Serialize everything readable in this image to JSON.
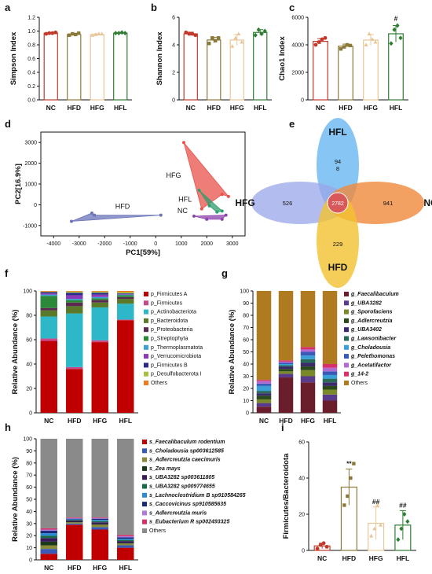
{
  "panel_labels": [
    "a",
    "b",
    "c",
    "d",
    "e",
    "f",
    "g",
    "h",
    "i"
  ],
  "colors": {
    "NC": "#c0392b",
    "HFD": "#8a7a3a",
    "HFG": "#e8c89a",
    "HFL": "#2e7d32",
    "pca_HFD": "#6a74b8",
    "pca_HFG": "#e8504a",
    "pca_HFL": "#2e9e6e",
    "pca_NC": "#8e44ad",
    "venn_HFL": "#5fb3f0",
    "venn_HFG": "#9aa6e8",
    "venn_NC": "#f0883c",
    "venn_HFD": "#f2c230",
    "venn_center": "#d9585a",
    "f": [
      "#c00000",
      "#c84a8a",
      "#2db7c8",
      "#5a7a2a",
      "#5b2a50",
      "#2a8a3a",
      "#3aa0d8",
      "#8a3ab8",
      "#2a2a8a",
      "#a8c040",
      "#f07a20"
    ],
    "g": [
      "#6a1d2a",
      "#5a3a8a",
      "#7a8a2a",
      "#2a4a1a",
      "#3a2a6a",
      "#2a6a5a",
      "#3aa0d8",
      "#3a5ab8",
      "#b06ad0",
      "#d8306a",
      "#b07a20"
    ],
    "h": [
      "#c00000",
      "#3a5ab8",
      "#8a8a3a",
      "#1a3a1a",
      "#3a1a5a",
      "#1a6a4a",
      "#2a8ad8",
      "#1a2a7a",
      "#b07ad8",
      "#d8306a",
      "#8a8a8a"
    ]
  },
  "chart_data": [
    {
      "id": "a",
      "type": "bar",
      "ylabel": "Simpson Index",
      "categories": [
        "NC",
        "HFD",
        "HFG",
        "HFL"
      ],
      "ylim": [
        0,
        1.2
      ],
      "yticks": [
        "0.0",
        "0.2",
        "0.4",
        "0.6",
        "0.8",
        "1.0",
        "1.2"
      ],
      "values": [
        0.97,
        0.95,
        0.95,
        0.97
      ],
      "points": [
        [
          0.96,
          0.97,
          0.97,
          0.98
        ],
        [
          0.94,
          0.96,
          0.95,
          0.97
        ],
        [
          0.94,
          0.95,
          0.96,
          0.96
        ],
        [
          0.97,
          0.97,
          0.98,
          0.97
        ]
      ],
      "errors": [
        0.01,
        0.01,
        0.01,
        0.01
      ]
    },
    {
      "id": "b",
      "type": "bar",
      "ylabel": "Shannon Index",
      "categories": [
        "NC",
        "HFD",
        "HFG",
        "HFL"
      ],
      "ylim": [
        0,
        6
      ],
      "yticks": [
        "0",
        "2",
        "4",
        "6"
      ],
      "values": [
        4.8,
        4.35,
        4.35,
        4.9
      ],
      "points": [
        [
          4.9,
          4.8,
          4.8,
          4.7
        ],
        [
          4.1,
          4.5,
          4.3,
          4.5
        ],
        [
          3.9,
          4.5,
          4.8,
          4.2
        ],
        [
          4.7,
          5.1,
          4.8,
          5.0
        ]
      ],
      "errors": [
        0.12,
        0.2,
        0.4,
        0.2
      ]
    },
    {
      "id": "c",
      "type": "bar",
      "ylabel": "Chao1 Index",
      "categories": [
        "NC",
        "HFD",
        "HFG",
        "HFL"
      ],
      "ylim": [
        0,
        6000
      ],
      "yticks": [
        "0",
        "2000",
        "4000",
        "6000"
      ],
      "values": [
        4250,
        3900,
        4350,
        4800
      ],
      "points": [
        [
          4000,
          4200,
          4400,
          4500
        ],
        [
          3700,
          3850,
          4000,
          3950
        ],
        [
          4000,
          4800,
          4400,
          4200
        ],
        [
          4100,
          5100,
          5400,
          4500
        ]
      ],
      "errors": [
        200,
        150,
        400,
        600
      ],
      "annotation": {
        "category": "HFL",
        "text": "#"
      }
    },
    {
      "id": "d",
      "type": "scatter",
      "xlabel": "PC1[59%]",
      "ylabel": "PC2[16.9%]",
      "xlim": [
        -4500,
        3500
      ],
      "ylim": [
        -1500,
        3500
      ],
      "xticks": [
        -4000,
        -3000,
        -2000,
        -1000,
        0,
        1000,
        2000,
        3000
      ],
      "yticks": [
        -1000,
        0,
        1000,
        2000,
        3000
      ],
      "groups": [
        {
          "name": "HFD",
          "points": [
            [
              -3300,
              -800
            ],
            [
              -2500,
              -400
            ],
            [
              -2400,
              -500
            ],
            [
              200,
              -500
            ]
          ],
          "label_at": [
            -1300,
            -200
          ]
        },
        {
          "name": "HFG",
          "points": [
            [
              1100,
              3000
            ],
            [
              2850,
              400
            ],
            [
              2600,
              500
            ],
            [
              1800,
              -200
            ]
          ],
          "label_at": [
            700,
            1300
          ]
        },
        {
          "name": "HFL",
          "points": [
            [
              1700,
              700
            ],
            [
              2100,
              -50
            ],
            [
              2400,
              -350
            ],
            [
              2600,
              -300
            ]
          ],
          "label_at": [
            1150,
            150
          ]
        },
        {
          "name": "NC",
          "points": [
            [
              1500,
              -550
            ],
            [
              2000,
              -700
            ],
            [
              2600,
              -700
            ],
            [
              2750,
              -500
            ]
          ],
          "label_at": [
            1050,
            -400
          ]
        }
      ]
    },
    {
      "id": "e",
      "type": "venn",
      "sets": [
        "HFL",
        "HFG",
        "NC",
        "HFD"
      ],
      "counts": {
        "HFL": "94",
        "HFL_sub": "8",
        "HFG": "526",
        "NC": "941",
        "HFD": "229",
        "core": "2782"
      }
    },
    {
      "id": "f",
      "type": "stacked_bar",
      "ylabel": "Relative Abundance (%)",
      "categories": [
        "NC",
        "HFD",
        "HFG",
        "HFL"
      ],
      "ylim": [
        0,
        100
      ],
      "yticks": [
        "0",
        "20",
        "40",
        "60",
        "80",
        "100"
      ],
      "series": [
        {
          "name": "p_Firmicutes A",
          "values": [
            59,
            36,
            58,
            76
          ]
        },
        {
          "name": "p_Firmicutes",
          "values": [
            2,
            1.5,
            1.5,
            0.5
          ]
        },
        {
          "name": "p_Actinobacteriota",
          "values": [
            18,
            44,
            27,
            13
          ]
        },
        {
          "name": "p_Bacteroidota",
          "values": [
            5,
            6,
            4,
            4
          ]
        },
        {
          "name": "p_Proteobacteria",
          "values": [
            2,
            3,
            2,
            1.5
          ]
        },
        {
          "name": "p_Streptophyta",
          "values": [
            10,
            2,
            1.5,
            1.5
          ]
        },
        {
          "name": "p_Thermoplasmatota",
          "values": [
            1,
            1,
            1,
            0.5
          ]
        },
        {
          "name": "p_Verrucomicrobiota",
          "values": [
            1,
            3,
            2,
            0.5
          ]
        },
        {
          "name": "p_Firmicutes B",
          "values": [
            1,
            2,
            1.5,
            0.5
          ]
        },
        {
          "name": "p_Desulfobacterota I",
          "values": [
            0.5,
            1,
            1,
            1
          ]
        },
        {
          "name": "Others",
          "values": [
            0.5,
            0.5,
            0.5,
            1
          ]
        }
      ]
    },
    {
      "id": "g",
      "type": "stacked_bar",
      "ylabel": "Relative Abundance (%)",
      "categories": [
        "NC",
        "HFD",
        "HFG",
        "HFL"
      ],
      "ylim": [
        0,
        100
      ],
      "yticks": [
        "0",
        "10",
        "20",
        "30",
        "40",
        "50",
        "60",
        "70",
        "80",
        "90",
        "100"
      ],
      "series": [
        {
          "name": "g_Faecalibaculum",
          "values": [
            5,
            29,
            25,
            10
          ]
        },
        {
          "name": "g_UBA3282",
          "values": [
            3,
            3,
            5,
            5
          ]
        },
        {
          "name": "g_Sporofaciens",
          "values": [
            3,
            2,
            5,
            4
          ]
        },
        {
          "name": "g_Adlercreutzia",
          "values": [
            3,
            2,
            3,
            3
          ]
        },
        {
          "name": "g_UBA3402",
          "values": [
            2,
            2,
            3,
            3
          ]
        },
        {
          "name": "g_Lawsonibacter",
          "values": [
            2,
            1,
            3,
            3
          ]
        },
        {
          "name": "g_Choladousia",
          "values": [
            4,
            1,
            3,
            3
          ]
        },
        {
          "name": "g_Pelethomonas",
          "values": [
            2,
            1,
            3,
            3
          ]
        },
        {
          "name": "g_Acetatifactor",
          "values": [
            2,
            1,
            2,
            3
          ]
        },
        {
          "name": "g_14-2",
          "values": [
            1,
            1,
            2,
            3
          ]
        },
        {
          "name": "Others",
          "values": [
            73,
            57,
            46,
            60
          ]
        }
      ]
    },
    {
      "id": "h",
      "type": "stacked_bar",
      "ylabel": "Relative Abundance (%)",
      "categories": [
        "NC",
        "HFD",
        "HFG",
        "HFL"
      ],
      "ylim": [
        0,
        100
      ],
      "yticks": [
        "0",
        "10",
        "20",
        "30",
        "40",
        "50",
        "60",
        "70",
        "80",
        "90",
        "100"
      ],
      "series": [
        {
          "name": "s_Faecalibaculum rodentium",
          "values": [
            5,
            29,
            25,
            10
          ]
        },
        {
          "name": "s_Choladousia sp003612585",
          "values": [
            4,
            1,
            2,
            2
          ]
        },
        {
          "name": "s_Adlercreutzia caecimuris",
          "values": [
            3,
            1,
            2,
            1.5
          ]
        },
        {
          "name": "s_Zea mays",
          "values": [
            3,
            0.5,
            0.5,
            0.5
          ]
        },
        {
          "name": "s_UBA3282 sp003611805",
          "values": [
            3,
            1,
            1.5,
            1.5
          ]
        },
        {
          "name": "s_UBA3282 sp009774655",
          "values": [
            2,
            0.5,
            1,
            1
          ]
        },
        {
          "name": "s_Lachnoclostridium B sp910584265",
          "values": [
            2,
            0.5,
            1,
            1
          ]
        },
        {
          "name": "s_Caccovicinus sp910585635",
          "values": [
            2,
            0.5,
            1,
            1
          ]
        },
        {
          "name": "s_Adlercreutzia muris",
          "values": [
            1,
            0.5,
            0.5,
            1
          ]
        },
        {
          "name": "s_Eubacterium R sp002493325",
          "values": [
            1,
            0.5,
            0.5,
            1
          ]
        },
        {
          "name": "Others",
          "values": [
            74,
            65,
            65,
            79.5
          ]
        }
      ]
    },
    {
      "id": "i",
      "type": "bar",
      "ylabel": "Firmicutes/Bacteroidota",
      "categories": [
        "NC",
        "HFD",
        "HFG",
        "HFL"
      ],
      "ylim": [
        0,
        60
      ],
      "yticks": [
        "0",
        "20",
        "40",
        "60"
      ],
      "values": [
        2.5,
        35,
        15,
        14
      ],
      "points": [
        [
          1,
          3,
          4,
          2
        ],
        [
          25,
          30,
          40,
          48
        ],
        [
          8,
          12,
          25,
          14
        ],
        [
          6,
          12,
          20,
          16
        ]
      ],
      "errors": [
        1.5,
        10,
        9,
        8
      ],
      "annotations": [
        "",
        "**",
        "##",
        "##"
      ]
    }
  ]
}
